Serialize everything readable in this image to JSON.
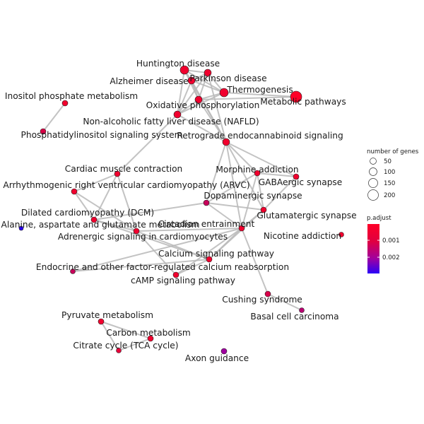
{
  "network": {
    "nodes": [
      {
        "id": "huntington",
        "label": "Huntington disease",
        "color": "#f1002e"
      },
      {
        "id": "parkinson",
        "label": "Parkinson disease",
        "color": "#f1002e"
      },
      {
        "id": "alzheimer",
        "label": "Alzheimer disease",
        "color": "#f1002e"
      },
      {
        "id": "thermogenesis",
        "label": "Thermogenesis",
        "color": "#f1002e"
      },
      {
        "id": "metabolic",
        "label": "Metabolic pathways",
        "color": "#ff0028"
      },
      {
        "id": "oxphos",
        "label": "Oxidative phosphorylation",
        "color": "#f1002e"
      },
      {
        "id": "nafld",
        "label": "Non-alcoholic fatty liver disease (NAFLD)",
        "color": "#f1002e"
      },
      {
        "id": "inositol",
        "label": "Inositol phosphate metabolism",
        "color": "#f2002d"
      },
      {
        "id": "phosphatidylinositol",
        "label": "Phosphatidylinositol signaling system",
        "color": "#d80045"
      },
      {
        "id": "retrograde",
        "label": "Retrograde endocannabinoid signaling",
        "color": "#f1002e"
      },
      {
        "id": "cardiac",
        "label": "Cardiac muscle contraction",
        "color": "#f1002e"
      },
      {
        "id": "morphine",
        "label": "Morphine addiction",
        "color": "#f1002e"
      },
      {
        "id": "gabaergic",
        "label": "GABAergic synapse",
        "color": "#f1002e"
      },
      {
        "id": "arvc",
        "label": "Arrhythmogenic right ventricular cardiomyopathy (ARVC)",
        "color": "#f1002e"
      },
      {
        "id": "dopaminergic",
        "label": "Dopaminergic synapse",
        "color": "#c8005a"
      },
      {
        "id": "glutamatergic",
        "label": "Glutamatergic synapse",
        "color": "#f1002e"
      },
      {
        "id": "dcm",
        "label": "Dilated cardiomyopathy (DCM)",
        "color": "#f1002e"
      },
      {
        "id": "circadian",
        "label": "Circadian entrainment",
        "color": "#f1002e"
      },
      {
        "id": "alanine",
        "label": "Alanine, aspartate and glutamate metabolism",
        "color": "#2a00f8"
      },
      {
        "id": "adrenergic",
        "label": "Adrenergic signaling in cardiomyocytes",
        "color": "#f1002e"
      },
      {
        "id": "nicotine",
        "label": "Nicotine addiction",
        "color": "#f1002e"
      },
      {
        "id": "calcium",
        "label": "Calcium signaling pathway",
        "color": "#f1002e"
      },
      {
        "id": "endocrine",
        "label": "Endocrine and other factor-regulated calcium reabsorption",
        "color": "#c8005a"
      },
      {
        "id": "camp",
        "label": "cAMP signaling pathway",
        "color": "#f1002e"
      },
      {
        "id": "cushing",
        "label": "Cushing syndrome",
        "color": "#d9004a"
      },
      {
        "id": "basal",
        "label": "Basal cell carcinoma",
        "color": "#b80070"
      },
      {
        "id": "pyruvate",
        "label": "Pyruvate metabolism",
        "color": "#f1002e"
      },
      {
        "id": "carbon",
        "label": "Carbon metabolism",
        "color": "#f1002e"
      },
      {
        "id": "citrate",
        "label": "Citrate cycle (TCA cycle)",
        "color": "#e8003a"
      },
      {
        "id": "axon",
        "label": "Axon guidance",
        "color": "#a000a0"
      }
    ],
    "edges": [
      [
        "huntington",
        "parkinson"
      ],
      [
        "huntington",
        "alzheimer"
      ],
      [
        "huntington",
        "thermogenesis"
      ],
      [
        "huntington",
        "oxphos"
      ],
      [
        "huntington",
        "nafld"
      ],
      [
        "huntington",
        "retrograde"
      ],
      [
        "parkinson",
        "alzheimer"
      ],
      [
        "parkinson",
        "thermogenesis"
      ],
      [
        "parkinson",
        "oxphos"
      ],
      [
        "parkinson",
        "nafld"
      ],
      [
        "parkinson",
        "retrograde"
      ],
      [
        "alzheimer",
        "thermogenesis"
      ],
      [
        "alzheimer",
        "oxphos"
      ],
      [
        "alzheimer",
        "nafld"
      ],
      [
        "alzheimer",
        "retrograde"
      ],
      [
        "thermogenesis",
        "oxphos"
      ],
      [
        "thermogenesis",
        "nafld"
      ],
      [
        "thermogenesis",
        "metabolic"
      ],
      [
        "oxphos",
        "nafld"
      ],
      [
        "oxphos",
        "metabolic"
      ],
      [
        "oxphos",
        "retrograde"
      ],
      [
        "nafld",
        "cardiac"
      ],
      [
        "inositol",
        "phosphatidylinositol"
      ],
      [
        "retrograde",
        "morphine"
      ],
      [
        "retrograde",
        "gabaergic"
      ],
      [
        "retrograde",
        "dopaminergic"
      ],
      [
        "retrograde",
        "glutamatergic"
      ],
      [
        "retrograde",
        "circadian"
      ],
      [
        "retrograde",
        "nafld"
      ],
      [
        "morphine",
        "gabaergic"
      ],
      [
        "morphine",
        "dopaminergic"
      ],
      [
        "morphine",
        "glutamatergic"
      ],
      [
        "morphine",
        "circadian"
      ],
      [
        "gabaergic",
        "glutamatergic"
      ],
      [
        "dopaminergic",
        "glutamatergic"
      ],
      [
        "dopaminergic",
        "circadian"
      ],
      [
        "dopaminergic",
        "dcm"
      ],
      [
        "glutamatergic",
        "circadian"
      ],
      [
        "glutamatergic",
        "calcium"
      ],
      [
        "cardiac",
        "arvc"
      ],
      [
        "cardiac",
        "dcm"
      ],
      [
        "cardiac",
        "adrenergic"
      ],
      [
        "arvc",
        "dcm"
      ],
      [
        "arvc",
        "adrenergic"
      ],
      [
        "dcm",
        "adrenergic"
      ],
      [
        "dcm",
        "calcium"
      ],
      [
        "circadian",
        "adrenergic"
      ],
      [
        "circadian",
        "calcium"
      ],
      [
        "circadian",
        "camp"
      ],
      [
        "circadian",
        "cushing"
      ],
      [
        "circadian",
        "endocrine"
      ],
      [
        "adrenergic",
        "calcium"
      ],
      [
        "adrenergic",
        "camp"
      ],
      [
        "calcium",
        "camp"
      ],
      [
        "calcium",
        "endocrine"
      ],
      [
        "cushing",
        "basal"
      ],
      [
        "pyruvate",
        "carbon"
      ],
      [
        "pyruvate",
        "citrate"
      ],
      [
        "carbon",
        "citrate"
      ]
    ]
  },
  "legend": {
    "size_title": "number of genes",
    "size_values": [
      "50",
      "100",
      "150",
      "200"
    ],
    "color_title": "p.adjust",
    "color_ticks": [
      "0.001",
      "0.002"
    ],
    "gradient_colors": [
      "#ff0028",
      "#e00040",
      "#a000a0",
      "#2a00f8"
    ]
  }
}
